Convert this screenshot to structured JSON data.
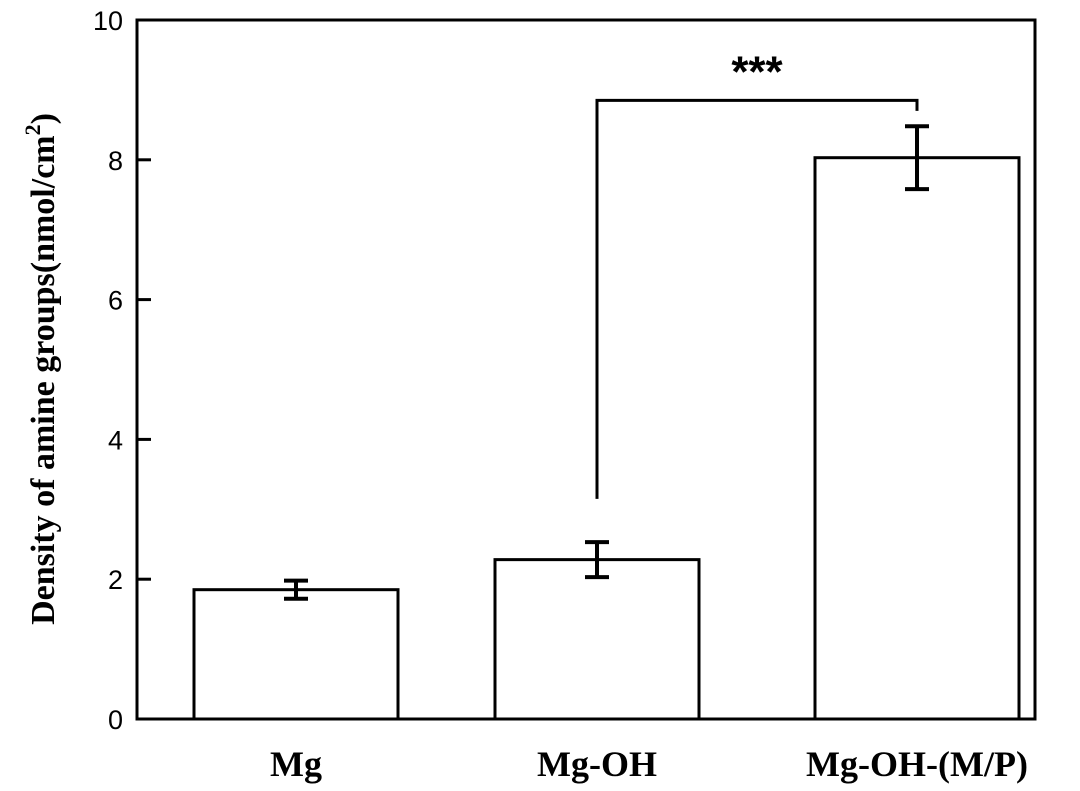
{
  "chart_data": {
    "type": "bar",
    "categories": [
      "Mg",
      "Mg-OH",
      "Mg-OH-(M/P)"
    ],
    "values": [
      1.85,
      2.28,
      8.03
    ],
    "errors": [
      0.13,
      0.25,
      0.45
    ],
    "ylabel_main": "Density of amine groups(nmol/cm",
    "ylabel_sup": "2",
    "ylabel_close": ")",
    "ylim": [
      0,
      10
    ],
    "yticks": [
      0,
      2,
      4,
      6,
      8,
      10
    ],
    "significance": {
      "from": "Mg-OH",
      "to": "Mg-OH-(M/P)",
      "label": "***",
      "level": 8.85,
      "from_drop": 3.15,
      "to_drop": 8.7
    },
    "bar_fill": "#ffffff",
    "bar_stroke": "#000000",
    "grid": false
  }
}
